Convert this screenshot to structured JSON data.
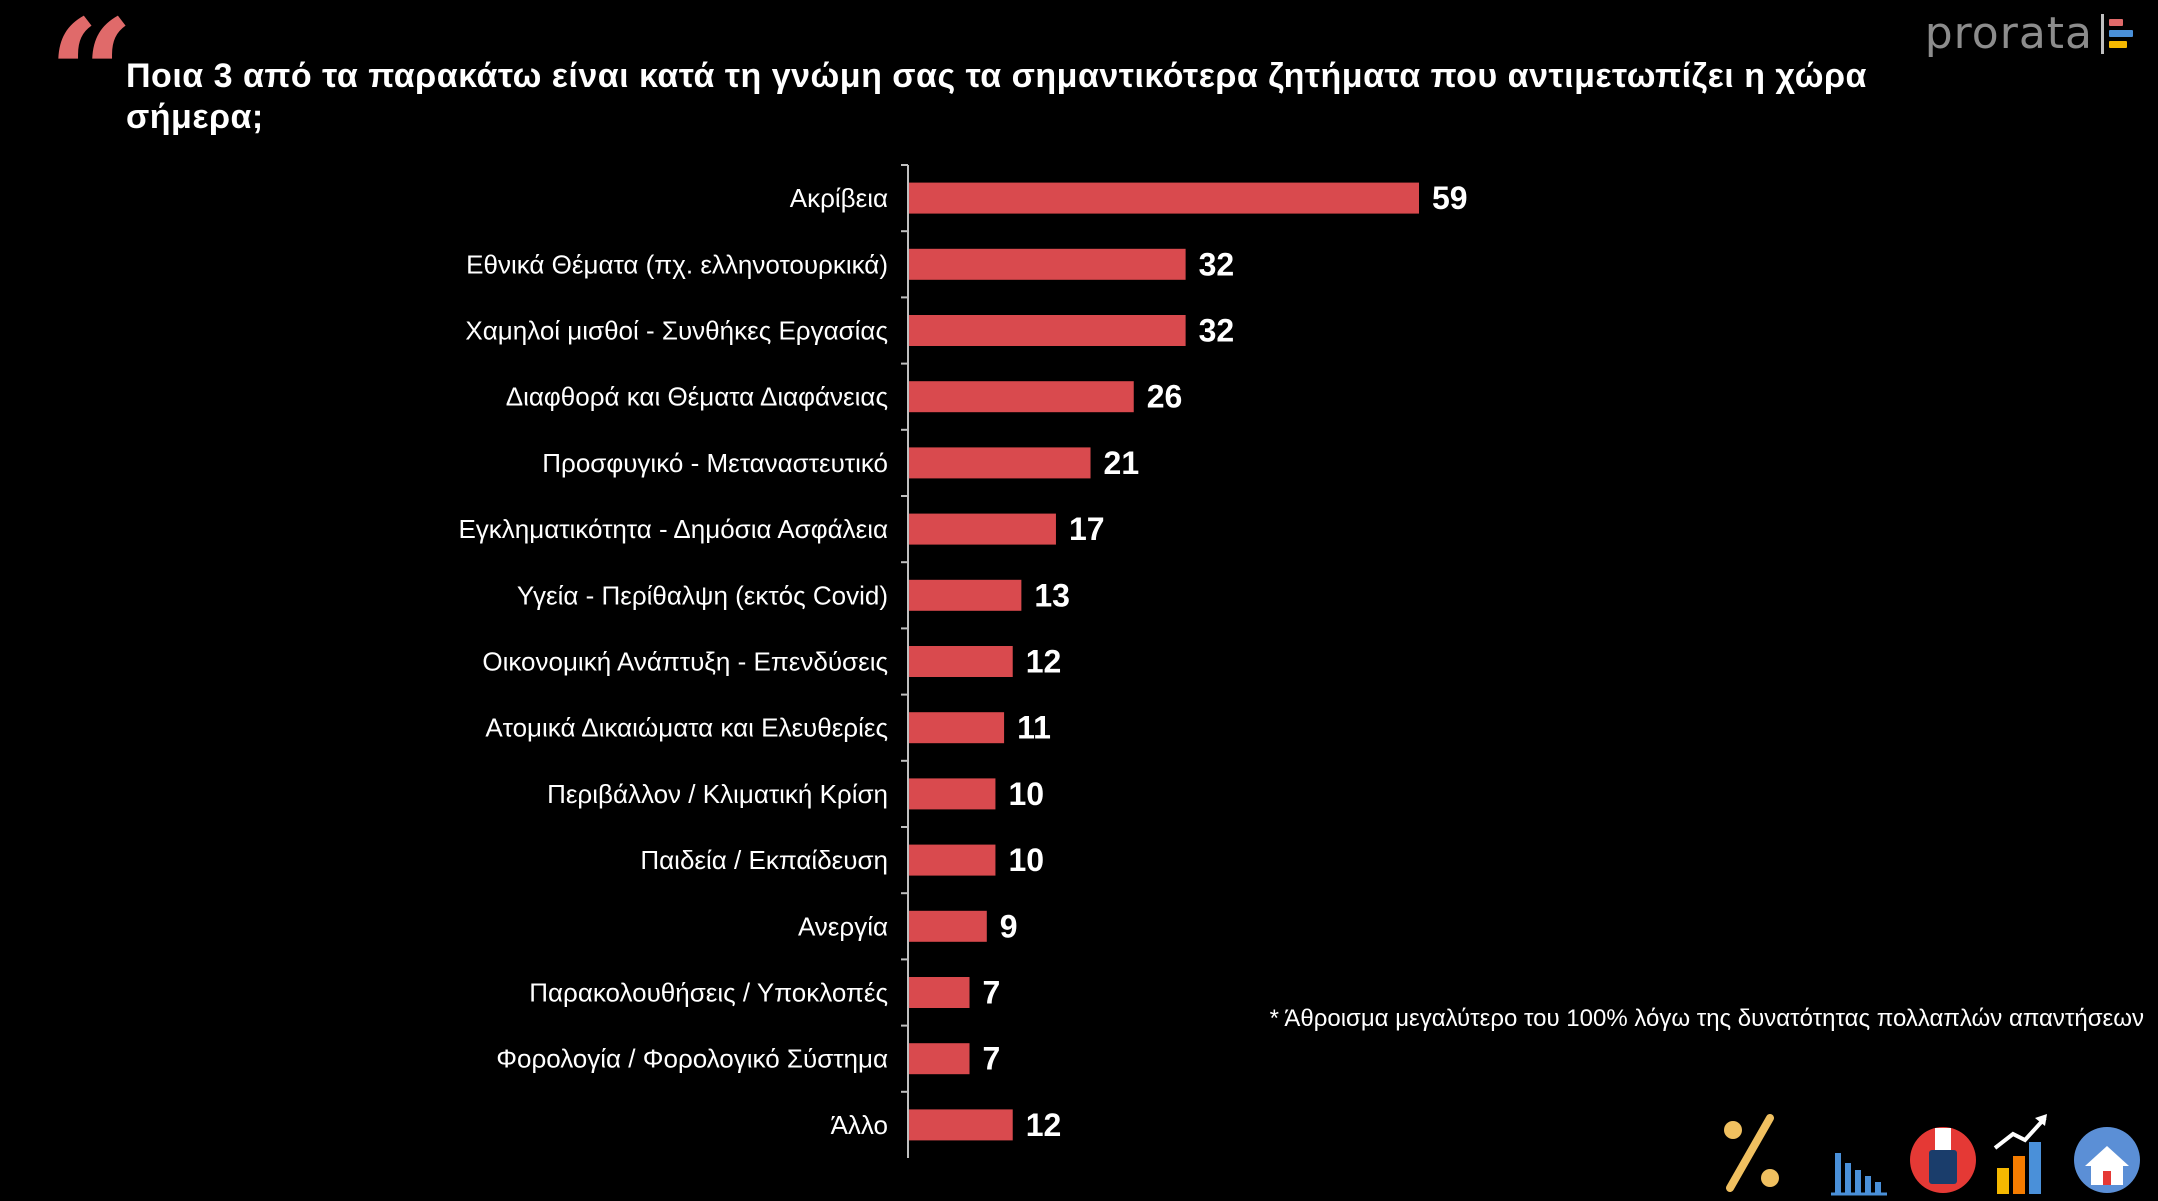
{
  "title": "Ποια 3 από τα παρακάτω είναι κατά τη γνώμη σας τα σημαντικότερα ζητήματα που αντιμετωπίζει η χώρα σήμερα;",
  "logo": {
    "text": "prorata",
    "bar_colors": [
      "#e06a6a",
      "#4a90d9",
      "#f5b800"
    ]
  },
  "footnote": "* Άθροισμα μεγαλύτερο του 100% λόγω της δυνατότητας πολλαπλών απαντήσεων",
  "icons": [
    "percent-icon",
    "bar-chart-icon",
    "ballot-box-icon",
    "growth-chart-icon",
    "house-icon"
  ],
  "colors": {
    "bar": "#d94a4e",
    "background": "#000000",
    "quote": "#e06a6a"
  },
  "chart_data": {
    "type": "bar",
    "orientation": "horizontal",
    "title": "Ποια 3 από τα παρακάτω είναι κατά τη γνώμη σας τα σημαντικότερα ζητήματα που αντιμετωπίζει η χώρα σήμερα;",
    "categories": [
      "Ακρίβεια",
      "Εθνικά Θέματα (πχ. ελληνοτουρκικά)",
      "Χαμηλοί μισθοί - Συνθήκες Εργασίας",
      "Διαφθορά και Θέματα Διαφάνειας",
      "Προσφυγικό - Μεταναστευτικό",
      "Εγκληματικότητα - Δημόσια Ασφάλεια",
      "Υγεία  - Περίθαλψη (εκτός Covid)",
      "Οικονομική Ανάπτυξη - Επενδύσεις",
      "Ατομικά Δικαιώματα και Ελευθερίες",
      "Περιβάλλον / Κλιματική Κρίση",
      "Παιδεία / Εκπαίδευση",
      "Ανεργία",
      "Παρακολουθήσεις / Υποκλοπές",
      "Φορολογία / Φορολογικό Σύστημα",
      "Άλλο"
    ],
    "values": [
      59,
      32,
      32,
      26,
      21,
      17,
      13,
      12,
      11,
      10,
      10,
      9,
      7,
      7,
      12
    ],
    "xlim": [
      0,
      59
    ],
    "grid": false,
    "legend": "none"
  }
}
